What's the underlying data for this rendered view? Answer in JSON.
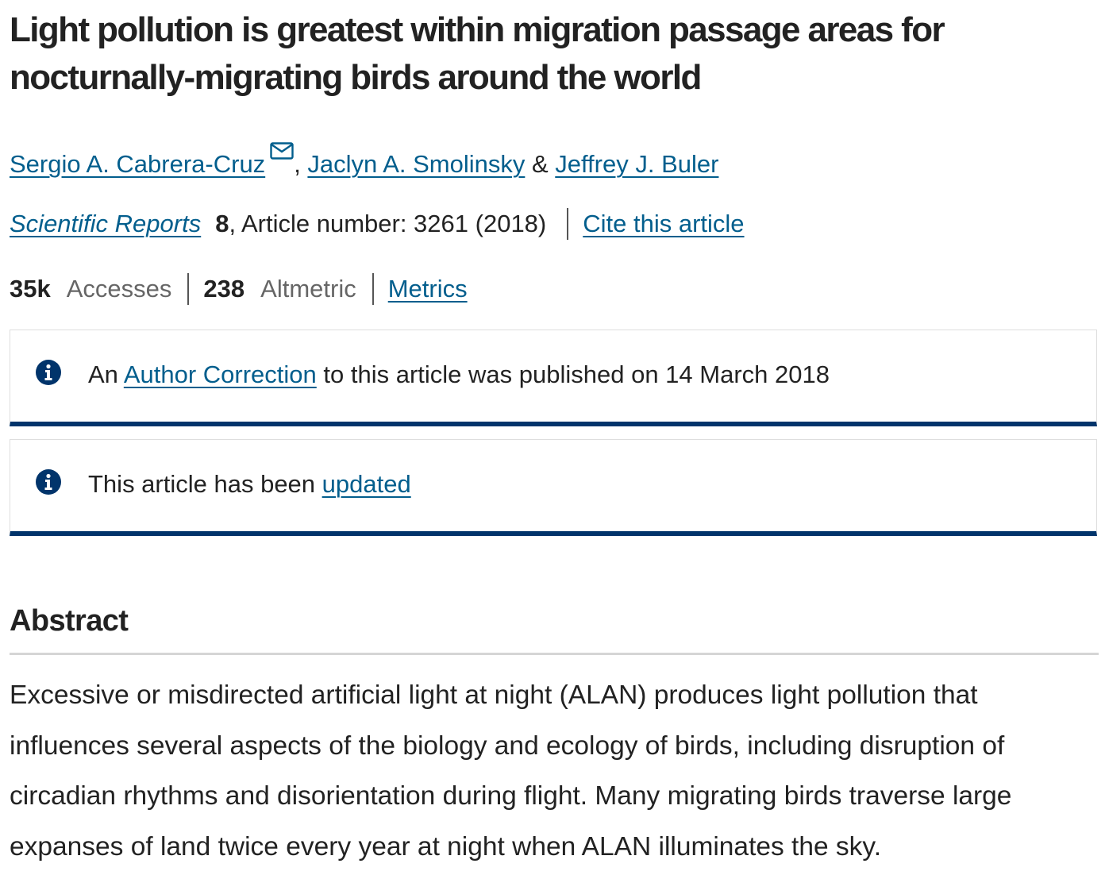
{
  "article": {
    "title": "Light pollution is greatest within migration passage areas for nocturnally-migrating birds around the world",
    "authors": [
      {
        "name": "Sergio A. Cabrera-Cruz",
        "contact_icon": "mail-icon"
      },
      {
        "name": "Jaclyn A. Smolinsky"
      },
      {
        "name": "Jeffrey J. Buler"
      }
    ],
    "author_separators": [
      ", ",
      " & "
    ],
    "journal": {
      "name": "Scientific Reports",
      "volume": "8",
      "article_number_text": ", Article number: 3261 (2018)",
      "cite_label": "Cite this article"
    },
    "metrics": {
      "accesses_value": "35k",
      "accesses_label": "Accesses",
      "altmetric_value": "238",
      "altmetric_label": "Altmetric",
      "metrics_link": "Metrics"
    },
    "notices": [
      {
        "icon": "info-icon",
        "prefix": "An ",
        "link": "Author Correction",
        "suffix": " to this article was published on 14 March 2018"
      },
      {
        "icon": "info-icon",
        "prefix": "This article has been ",
        "link": "updated",
        "suffix": ""
      }
    ],
    "abstract": {
      "heading": "Abstract",
      "text": "Excessive or misdirected artificial light at night (ALAN) produces light pollution that influences several aspects of the biology and ecology of birds, including disruption of circadian rhythms and disorientation during flight. Many migrating birds traverse large expanses of land twice every year at night when ALAN illuminates the sky."
    }
  },
  "colors": {
    "link": "#025e8d",
    "notice_border": "#01346b",
    "info_icon": "#01346b",
    "text": "#222222",
    "muted": "#666666"
  }
}
